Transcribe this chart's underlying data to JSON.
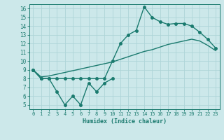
{
  "line1_x": [
    0,
    1,
    2,
    3,
    4,
    5,
    6,
    7,
    8,
    9,
    10
  ],
  "line1_y": [
    9.0,
    8.0,
    8.0,
    6.5,
    5.0,
    6.0,
    5.0,
    7.5,
    6.5,
    7.5,
    8.0
  ],
  "line2_x": [
    0,
    1,
    2,
    3,
    4,
    5,
    6,
    7,
    8,
    9,
    10,
    11,
    12,
    13,
    14,
    15,
    16,
    17,
    18,
    19,
    20,
    21,
    22,
    23
  ],
  "line2_y": [
    9.0,
    8.0,
    8.0,
    8.0,
    8.0,
    8.0,
    8.0,
    8.0,
    8.0,
    8.0,
    10.0,
    12.0,
    13.0,
    13.5,
    16.2,
    15.0,
    14.5,
    14.2,
    14.3,
    14.3,
    14.0,
    13.3,
    12.5,
    11.5
  ],
  "line3_x": [
    0,
    1,
    2,
    3,
    4,
    5,
    6,
    7,
    8,
    9,
    10,
    11,
    12,
    13,
    14,
    15,
    16,
    17,
    18,
    19,
    20,
    21,
    22,
    23
  ],
  "line3_y": [
    9.0,
    8.2,
    8.3,
    8.5,
    8.7,
    8.9,
    9.1,
    9.3,
    9.5,
    9.7,
    9.9,
    10.2,
    10.5,
    10.8,
    11.1,
    11.3,
    11.6,
    11.9,
    12.1,
    12.3,
    12.5,
    12.3,
    11.8,
    11.2
  ],
  "line_color": "#1a7a6e",
  "bg_color": "#cce8ea",
  "grid_color": "#add4d8",
  "xlabel": "Humidex (Indice chaleur)",
  "xlim": [
    -0.5,
    23.5
  ],
  "ylim": [
    4.5,
    16.5
  ],
  "yticks": [
    5,
    6,
    7,
    8,
    9,
    10,
    11,
    12,
    13,
    14,
    15,
    16
  ],
  "xticks": [
    0,
    1,
    2,
    3,
    4,
    5,
    6,
    7,
    8,
    9,
    10,
    11,
    12,
    13,
    14,
    15,
    16,
    17,
    18,
    19,
    20,
    21,
    22,
    23
  ],
  "marker_size": 2.5,
  "line_width": 1.0
}
